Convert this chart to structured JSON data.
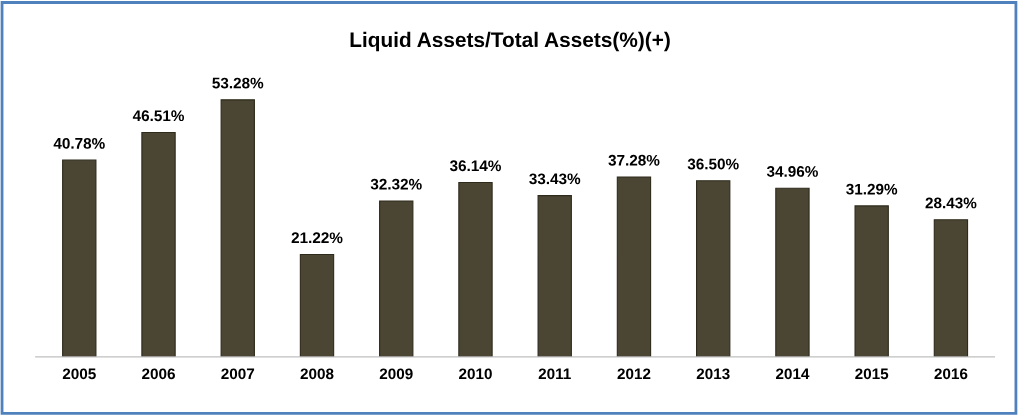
{
  "chart_data": {
    "type": "bar",
    "title": "Liquid Assets/Total Assets(%)(+)",
    "categories": [
      "2005",
      "2006",
      "2007",
      "2008",
      "2009",
      "2010",
      "2011",
      "2012",
      "2013",
      "2014",
      "2015",
      "2016"
    ],
    "values": [
      40.78,
      46.51,
      53.28,
      21.22,
      32.32,
      36.14,
      33.43,
      37.28,
      36.5,
      34.96,
      31.29,
      28.43
    ],
    "value_labels": [
      "40.78%",
      "46.51%",
      "53.28%",
      "21.22%",
      "32.32%",
      "36.14%",
      "33.43%",
      "37.28%",
      "36.50%",
      "34.96%",
      "31.29%",
      "28.43%"
    ],
    "color": "#4b4633",
    "tick_labels": "x",
    "grid": false,
    "legend": false
  }
}
